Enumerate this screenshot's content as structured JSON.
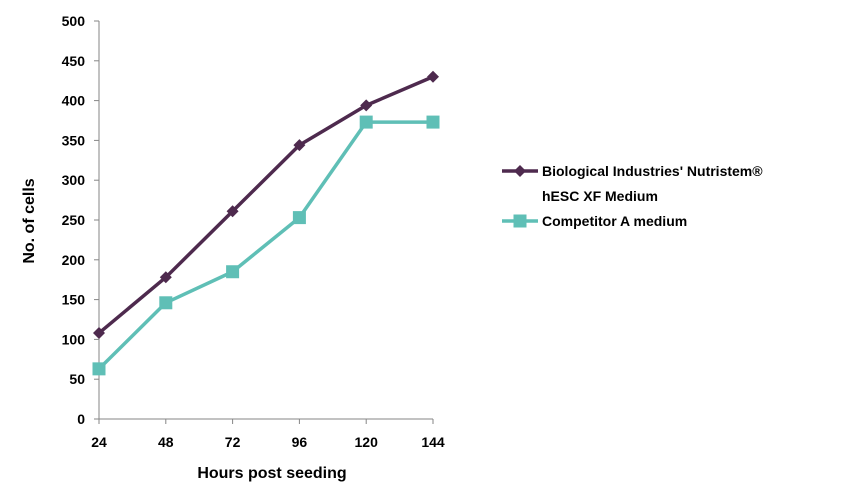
{
  "chart_data": {
    "type": "line",
    "title": "",
    "xlabel": "Hours post seeding",
    "ylabel": "No. of cells",
    "categories": [
      "24",
      "48",
      "72",
      "96",
      "120",
      "144"
    ],
    "ylim": [
      0,
      500
    ],
    "yticks": [
      0,
      50,
      100,
      150,
      200,
      250,
      300,
      350,
      400,
      450,
      500
    ],
    "grid": false,
    "legend_position": "right",
    "series": [
      {
        "name_lines": [
          "Biological Industries' Nutristem®",
          "hESC XF Medium"
        ],
        "values": [
          108,
          178,
          261,
          344,
          394,
          430
        ],
        "color": "#4e2a4e",
        "marker": "diamond"
      },
      {
        "name_lines": [
          "Competitor A medium"
        ],
        "values": [
          63,
          146,
          185,
          253,
          373,
          373
        ],
        "color": "#5fbfb6",
        "marker": "square"
      }
    ]
  }
}
